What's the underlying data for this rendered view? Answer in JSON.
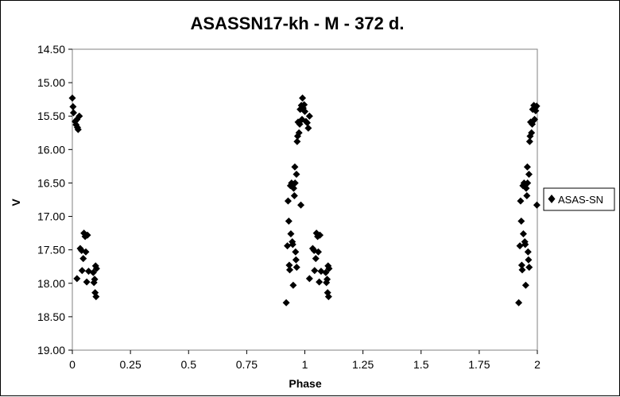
{
  "chart_data": {
    "type": "scatter",
    "title": "ASASSN17-kh - M - 372 d.",
    "xlabel": "Phase",
    "ylabel": "V",
    "xlim": [
      0,
      2
    ],
    "ylim": [
      14.5,
      19.0
    ],
    "y_inverted": true,
    "grid": false,
    "legend_position": "right",
    "x_ticks": [
      "0",
      "0.25",
      "0.5",
      "0.75",
      "1",
      "1.25",
      "1.5",
      "1.75",
      "2"
    ],
    "y_ticks": [
      "14.50",
      "15.00",
      "15.50",
      "16.00",
      "16.50",
      "17.00",
      "17.50",
      "18.00",
      "18.50",
      "19.00"
    ],
    "marker": "diamond",
    "marker_color": "#000000",
    "series": [
      {
        "name": "ASAS-SN",
        "points": [
          [
            0.0,
            15.23
          ],
          [
            0.003,
            15.36
          ],
          [
            0.005,
            15.45
          ],
          [
            0.012,
            15.58
          ],
          [
            0.016,
            15.63
          ],
          [
            0.02,
            15.55
          ],
          [
            0.022,
            15.67
          ],
          [
            0.025,
            15.7
          ],
          [
            0.03,
            15.5
          ],
          [
            0.02,
            17.93
          ],
          [
            0.034,
            17.48
          ],
          [
            0.04,
            17.51
          ],
          [
            0.042,
            17.81
          ],
          [
            0.047,
            17.63
          ],
          [
            0.05,
            17.25
          ],
          [
            0.055,
            17.3
          ],
          [
            0.058,
            17.53
          ],
          [
            0.062,
            17.98
          ],
          [
            0.065,
            17.28
          ],
          [
            0.07,
            17.82
          ],
          [
            0.09,
            17.84
          ],
          [
            0.093,
            17.99
          ],
          [
            0.096,
            17.94
          ],
          [
            0.098,
            18.14
          ],
          [
            0.1,
            17.74
          ],
          [
            0.102,
            18.2
          ],
          [
            0.104,
            17.78
          ],
          [
            0.92,
            18.29
          ],
          [
            0.925,
            17.44
          ],
          [
            0.928,
            16.77
          ],
          [
            0.931,
            17.07
          ],
          [
            0.933,
            17.73
          ],
          [
            0.935,
            17.8
          ],
          [
            0.938,
            16.54
          ],
          [
            0.94,
            17.26
          ],
          [
            0.943,
            16.5
          ],
          [
            0.946,
            17.38
          ],
          [
            0.948,
            17.42
          ],
          [
            0.95,
            18.03
          ],
          [
            0.952,
            16.58
          ],
          [
            0.955,
            16.69
          ],
          [
            0.957,
            16.26
          ],
          [
            0.958,
            16.5
          ],
          [
            0.96,
            17.53
          ],
          [
            0.962,
            17.65
          ],
          [
            0.964,
            16.37
          ],
          [
            0.965,
            17.76
          ],
          [
            0.967,
            15.88
          ],
          [
            0.969,
            15.8
          ],
          [
            0.971,
            15.59
          ],
          [
            0.975,
            15.75
          ],
          [
            0.978,
            15.62
          ],
          [
            0.98,
            15.4
          ],
          [
            0.983,
            16.83
          ],
          [
            0.985,
            15.34
          ],
          [
            0.988,
            15.55
          ],
          [
            0.99,
            15.23
          ],
          [
            0.993,
            15.38
          ],
          [
            0.997,
            15.33
          ],
          [
            1.0,
            15.43
          ],
          [
            1.005,
            15.58
          ],
          [
            1.01,
            15.6
          ],
          [
            1.015,
            15.68
          ],
          [
            1.02,
            15.5
          ],
          [
            1.02,
            17.93
          ],
          [
            1.034,
            17.48
          ],
          [
            1.04,
            17.51
          ],
          [
            1.042,
            17.81
          ],
          [
            1.047,
            17.63
          ],
          [
            1.05,
            17.25
          ],
          [
            1.055,
            17.3
          ],
          [
            1.058,
            17.53
          ],
          [
            1.062,
            17.98
          ],
          [
            1.065,
            17.28
          ],
          [
            1.07,
            17.82
          ],
          [
            1.09,
            17.84
          ],
          [
            1.093,
            17.99
          ],
          [
            1.096,
            17.94
          ],
          [
            1.098,
            18.14
          ],
          [
            1.1,
            17.74
          ],
          [
            1.102,
            18.2
          ],
          [
            1.104,
            17.78
          ],
          [
            1.92,
            18.29
          ],
          [
            1.925,
            17.44
          ],
          [
            1.928,
            16.77
          ],
          [
            1.931,
            17.07
          ],
          [
            1.933,
            17.73
          ],
          [
            1.935,
            17.8
          ],
          [
            1.938,
            16.54
          ],
          [
            1.94,
            17.26
          ],
          [
            1.943,
            16.5
          ],
          [
            1.946,
            17.38
          ],
          [
            1.948,
            17.42
          ],
          [
            1.95,
            18.03
          ],
          [
            1.952,
            16.58
          ],
          [
            1.955,
            16.69
          ],
          [
            1.957,
            16.26
          ],
          [
            1.958,
            16.5
          ],
          [
            1.96,
            17.53
          ],
          [
            1.962,
            17.65
          ],
          [
            1.964,
            16.37
          ],
          [
            1.965,
            17.76
          ],
          [
            1.967,
            15.88
          ],
          [
            1.969,
            15.8
          ],
          [
            1.971,
            15.59
          ],
          [
            1.975,
            15.75
          ],
          [
            1.978,
            15.62
          ],
          [
            1.98,
            15.4
          ],
          [
            1.983,
            15.57
          ],
          [
            1.985,
            15.34
          ],
          [
            1.988,
            15.55
          ],
          [
            1.99,
            15.38
          ],
          [
            1.993,
            15.42
          ],
          [
            1.997,
            15.35
          ],
          [
            1.998,
            16.83
          ]
        ]
      }
    ]
  }
}
